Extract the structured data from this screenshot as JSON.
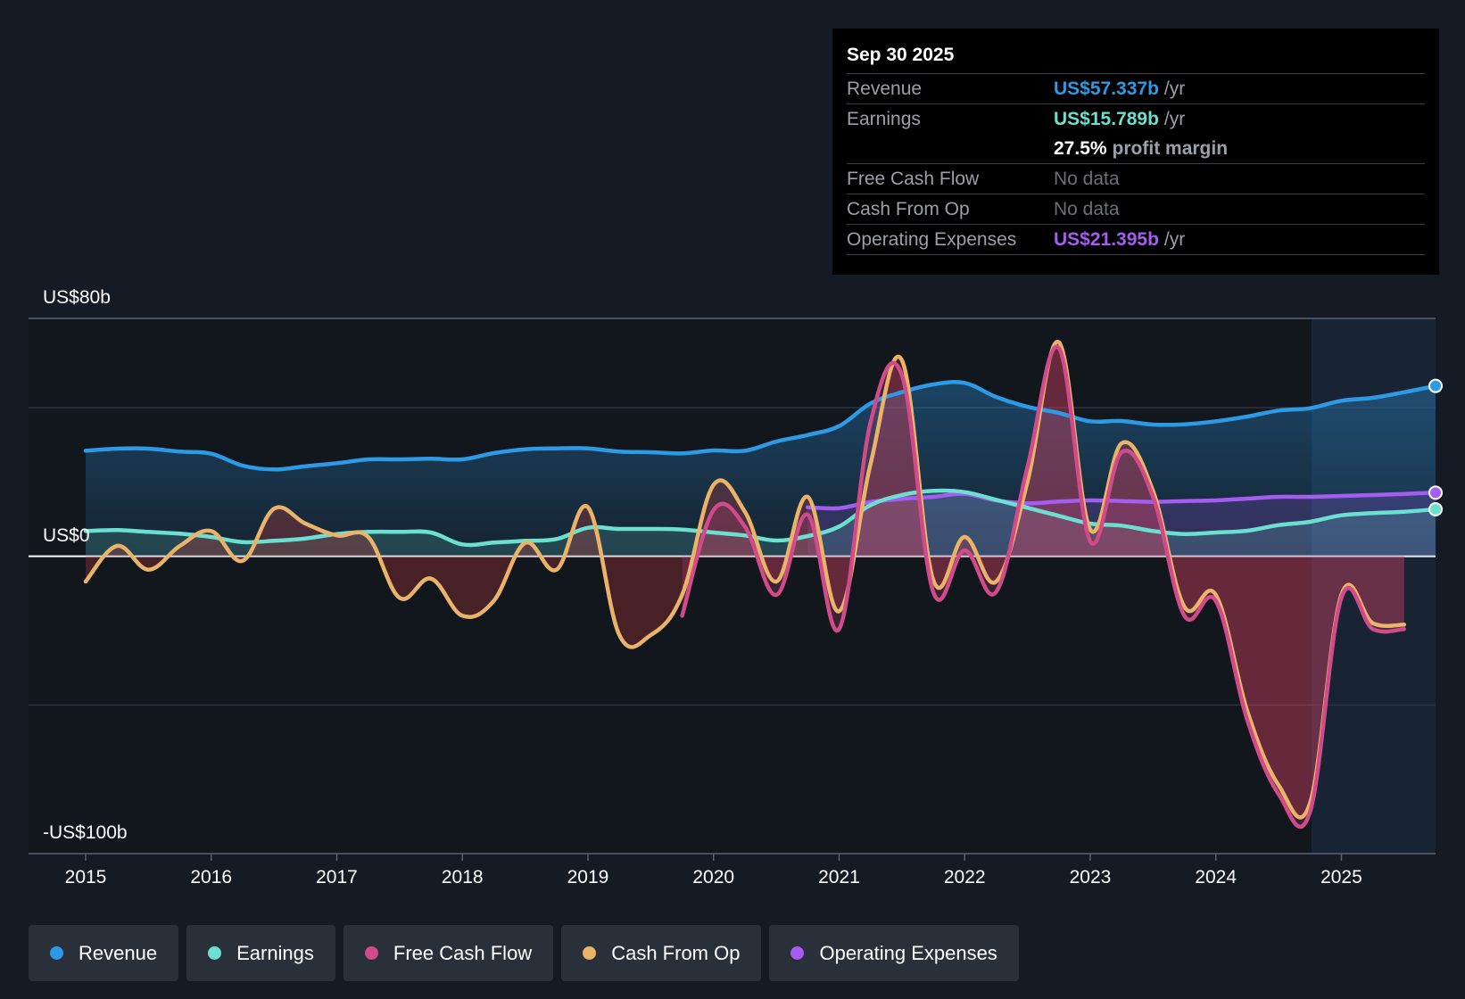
{
  "tooltip": {
    "date": "Sep 30 2025",
    "rows": {
      "revenue": {
        "label": "Revenue",
        "value": "US$57.337b",
        "unit": "/yr",
        "color": "#2d9ae6"
      },
      "earnings": {
        "label": "Earnings",
        "value": "US$15.789b",
        "unit": "/yr",
        "color": "#6be0d0"
      },
      "margin": {
        "value": "27.5%",
        "text": "profit margin"
      },
      "fcf": {
        "label": "Free Cash Flow",
        "value": "No data"
      },
      "cfo": {
        "label": "Cash From Op",
        "value": "No data"
      },
      "opex": {
        "label": "Operating Expenses",
        "value": "US$21.395b",
        "unit": "/yr",
        "color": "#a55cf0"
      }
    }
  },
  "legend": [
    {
      "label": "Revenue",
      "color": "#2d9ae6"
    },
    {
      "label": "Earnings",
      "color": "#6be0d0"
    },
    {
      "label": "Free Cash Flow",
      "color": "#d14a8a"
    },
    {
      "label": "Cash From Op",
      "color": "#e9b46a"
    },
    {
      "label": "Operating Expenses",
      "color": "#a55cf0"
    }
  ],
  "chart_data": {
    "type": "area",
    "y_axis_labels": {
      "top": "US$80b",
      "zero": "US$0",
      "bottom": "-US$100b"
    },
    "ylim": [
      -100,
      80
    ],
    "xlim": [
      2015.0,
      2025.75
    ],
    "x_ticks": [
      "2015",
      "2016",
      "2017",
      "2018",
      "2019",
      "2020",
      "2021",
      "2022",
      "2023",
      "2024",
      "2025"
    ],
    "forecast_start": 2024.75,
    "series": [
      {
        "name": "Revenue",
        "color": "#2d9ae6",
        "points": [
          [
            2015.0,
            35.5
          ],
          [
            2015.25,
            36.2
          ],
          [
            2015.5,
            36.2
          ],
          [
            2015.75,
            35.2
          ],
          [
            2016.0,
            34.5
          ],
          [
            2016.25,
            30.5
          ],
          [
            2016.5,
            29.2
          ],
          [
            2016.75,
            30.3
          ],
          [
            2017.0,
            31.3
          ],
          [
            2017.25,
            32.6
          ],
          [
            2017.5,
            32.6
          ],
          [
            2017.75,
            32.8
          ],
          [
            2018.0,
            32.6
          ],
          [
            2018.25,
            34.7
          ],
          [
            2018.5,
            36.0
          ],
          [
            2018.75,
            36.3
          ],
          [
            2019.0,
            36.3
          ],
          [
            2019.25,
            35.2
          ],
          [
            2019.5,
            35.0
          ],
          [
            2019.75,
            34.6
          ],
          [
            2020.0,
            35.6
          ],
          [
            2020.25,
            35.5
          ],
          [
            2020.5,
            38.6
          ],
          [
            2020.75,
            40.8
          ],
          [
            2021.0,
            43.8
          ],
          [
            2021.25,
            51.4
          ],
          [
            2021.5,
            55.2
          ],
          [
            2021.75,
            57.8
          ],
          [
            2022.0,
            58.3
          ],
          [
            2022.25,
            53.6
          ],
          [
            2022.5,
            50.3
          ],
          [
            2022.75,
            48.2
          ],
          [
            2023.0,
            45.4
          ],
          [
            2023.25,
            45.5
          ],
          [
            2023.5,
            44.3
          ],
          [
            2023.75,
            44.4
          ],
          [
            2024.0,
            45.4
          ],
          [
            2024.25,
            47.0
          ],
          [
            2024.5,
            49.0
          ],
          [
            2024.75,
            49.8
          ],
          [
            2025.0,
            52.3
          ],
          [
            2025.25,
            53.3
          ],
          [
            2025.5,
            55.2
          ],
          [
            2025.75,
            57.3
          ]
        ]
      },
      {
        "name": "Earnings",
        "color": "#6be0d0",
        "points": [
          [
            2015.0,
            8.5
          ],
          [
            2015.25,
            8.8
          ],
          [
            2015.5,
            8.2
          ],
          [
            2015.75,
            7.6
          ],
          [
            2016.0,
            6.5
          ],
          [
            2016.25,
            4.8
          ],
          [
            2016.5,
            5.2
          ],
          [
            2016.75,
            6.0
          ],
          [
            2017.0,
            7.5
          ],
          [
            2017.25,
            8.2
          ],
          [
            2017.5,
            8.2
          ],
          [
            2017.75,
            8.0
          ],
          [
            2018.0,
            4.0
          ],
          [
            2018.25,
            4.6
          ],
          [
            2018.5,
            5.2
          ],
          [
            2018.75,
            5.8
          ],
          [
            2019.0,
            9.6
          ],
          [
            2019.25,
            9.2
          ],
          [
            2019.5,
            9.2
          ],
          [
            2019.75,
            9.0
          ],
          [
            2020.0,
            8.0
          ],
          [
            2020.25,
            7.0
          ],
          [
            2020.5,
            5.3
          ],
          [
            2020.75,
            6.8
          ],
          [
            2021.0,
            10.0
          ],
          [
            2021.25,
            17.2
          ],
          [
            2021.5,
            20.6
          ],
          [
            2021.75,
            22.0
          ],
          [
            2022.0,
            21.6
          ],
          [
            2022.25,
            19.0
          ],
          [
            2022.5,
            16.3
          ],
          [
            2022.75,
            13.6
          ],
          [
            2023.0,
            11.0
          ],
          [
            2023.25,
            10.3
          ],
          [
            2023.5,
            8.5
          ],
          [
            2023.75,
            7.5
          ],
          [
            2024.0,
            8.0
          ],
          [
            2024.25,
            8.6
          ],
          [
            2024.5,
            10.5
          ],
          [
            2024.75,
            11.6
          ],
          [
            2025.0,
            13.8
          ],
          [
            2025.25,
            14.5
          ],
          [
            2025.5,
            15.0
          ],
          [
            2025.75,
            15.8
          ]
        ]
      },
      {
        "name": "Free Cash Flow",
        "color": "#d14a8a",
        "points": [
          [
            2019.75,
            -20.0
          ],
          [
            2020.0,
            15.5
          ],
          [
            2020.25,
            10.0
          ],
          [
            2020.5,
            -13.0
          ],
          [
            2020.75,
            14.0
          ],
          [
            2021.0,
            -24.5
          ],
          [
            2021.25,
            45.0
          ],
          [
            2021.5,
            61.0
          ],
          [
            2021.75,
            -12.0
          ],
          [
            2022.0,
            2.0
          ],
          [
            2022.25,
            -12.0
          ],
          [
            2022.5,
            30.0
          ],
          [
            2022.75,
            70.0
          ],
          [
            2023.0,
            5.0
          ],
          [
            2023.25,
            35.0
          ],
          [
            2023.5,
            20.0
          ],
          [
            2023.75,
            -20.0
          ],
          [
            2024.0,
            -15.0
          ],
          [
            2024.25,
            -55.0
          ],
          [
            2024.5,
            -80.0
          ],
          [
            2024.75,
            -86.0
          ],
          [
            2025.0,
            -14.0
          ],
          [
            2025.25,
            -24.5
          ],
          [
            2025.5,
            -24.5
          ]
        ]
      },
      {
        "name": "Cash From Op",
        "color": "#e9b46a",
        "points": [
          [
            2015.0,
            -8.5
          ],
          [
            2015.25,
            3.5
          ],
          [
            2015.5,
            -4.5
          ],
          [
            2015.75,
            3.5
          ],
          [
            2016.0,
            8.5
          ],
          [
            2016.25,
            -1.5
          ],
          [
            2016.5,
            16.0
          ],
          [
            2016.75,
            11.0
          ],
          [
            2017.0,
            7.0
          ],
          [
            2017.25,
            6.5
          ],
          [
            2017.5,
            -14.0
          ],
          [
            2017.75,
            -7.5
          ],
          [
            2018.0,
            -20.0
          ],
          [
            2018.25,
            -15.0
          ],
          [
            2018.5,
            4.5
          ],
          [
            2018.75,
            -4.5
          ],
          [
            2019.0,
            16.5
          ],
          [
            2019.25,
            -26.5
          ],
          [
            2019.5,
            -26.5
          ],
          [
            2019.75,
            -13.0
          ],
          [
            2020.0,
            24.0
          ],
          [
            2020.25,
            15.0
          ],
          [
            2020.5,
            -8.5
          ],
          [
            2020.75,
            20.0
          ],
          [
            2021.0,
            -18.5
          ],
          [
            2021.25,
            31.0
          ],
          [
            2021.5,
            66.0
          ],
          [
            2021.75,
            -8.0
          ],
          [
            2022.0,
            6.5
          ],
          [
            2022.25,
            -8.5
          ],
          [
            2022.5,
            25.0
          ],
          [
            2022.75,
            72.0
          ],
          [
            2023.0,
            9.0
          ],
          [
            2023.25,
            38.0
          ],
          [
            2023.5,
            22.0
          ],
          [
            2023.75,
            -17.0
          ],
          [
            2024.0,
            -13.0
          ],
          [
            2024.25,
            -52.0
          ],
          [
            2024.5,
            -77.0
          ],
          [
            2024.75,
            -83.0
          ],
          [
            2025.0,
            -13.0
          ],
          [
            2025.25,
            -22.5
          ],
          [
            2025.5,
            -23.0
          ]
        ]
      },
      {
        "name": "Operating Expenses",
        "color": "#a55cf0",
        "points": [
          [
            2020.75,
            16.5
          ],
          [
            2021.0,
            16.2
          ],
          [
            2021.25,
            18.3
          ],
          [
            2021.5,
            19.3
          ],
          [
            2021.75,
            20.0
          ],
          [
            2022.0,
            21.0
          ],
          [
            2022.25,
            18.8
          ],
          [
            2022.5,
            17.8
          ],
          [
            2022.75,
            18.4
          ],
          [
            2023.0,
            18.8
          ],
          [
            2023.25,
            18.6
          ],
          [
            2023.5,
            18.3
          ],
          [
            2023.75,
            18.6
          ],
          [
            2024.0,
            18.8
          ],
          [
            2024.25,
            19.4
          ],
          [
            2024.5,
            20.0
          ],
          [
            2024.75,
            20.0
          ],
          [
            2025.0,
            20.3
          ],
          [
            2025.25,
            20.6
          ],
          [
            2025.5,
            21.0
          ],
          [
            2025.75,
            21.4
          ]
        ]
      }
    ]
  }
}
